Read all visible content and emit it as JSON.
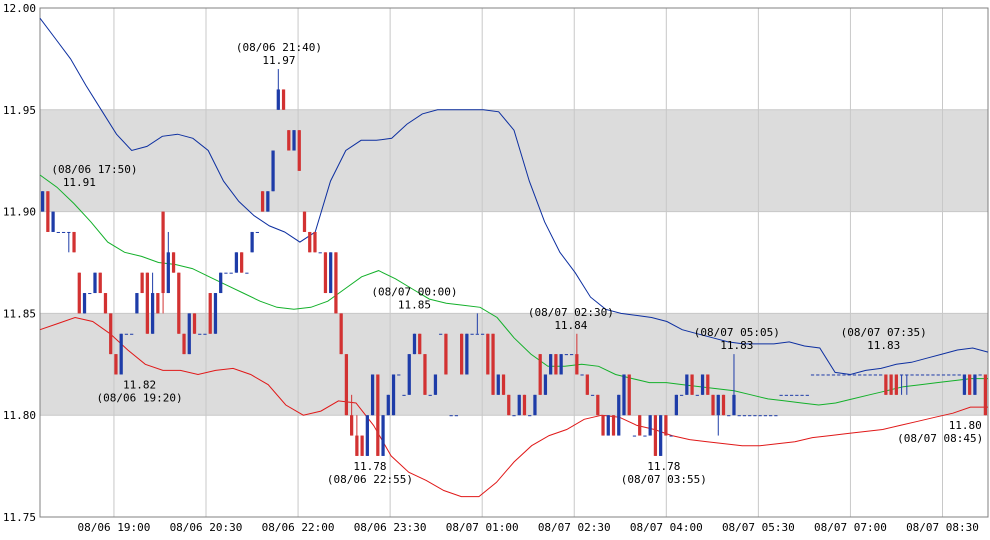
{
  "chart_data": {
    "type": "candlestick",
    "title": "",
    "xlabel": "",
    "ylabel": "",
    "ylim": [
      11.75,
      12.0
    ],
    "yticks": [
      "11.75",
      "11.80",
      "11.85",
      "11.90",
      "11.95",
      "12.00"
    ],
    "xticks": [
      "08/06 19:00",
      "08/06 20:30",
      "08/06 22:00",
      "08/06 23:30",
      "08/07 01:00",
      "08/07 02:30",
      "08/07 04:00",
      "08/07 05:30",
      "08/07 07:00",
      "08/07 08:30"
    ],
    "bands": [
      [
        11.8,
        11.85
      ],
      [
        11.9,
        11.95
      ]
    ],
    "grid": true,
    "colors": {
      "up": "#1e3ca8",
      "down": "#d23232",
      "upper_band": "#0d2fa0",
      "middle_band": "#13b02a",
      "lower_band": "#e01818",
      "band_fill": "#dcdcdc",
      "grid": "#c8c8c8"
    },
    "candles": [
      [
        11.9,
        11.91,
        11.9,
        11.91
      ],
      [
        11.91,
        11.91,
        11.89,
        11.89
      ],
      [
        11.89,
        11.9,
        11.89,
        11.9
      ],
      [
        11.89,
        11.89,
        11.89,
        11.89
      ],
      [
        11.89,
        11.89,
        11.89,
        11.89
      ],
      [
        11.89,
        11.89,
        11.88,
        11.89
      ],
      [
        11.89,
        11.89,
        11.88,
        11.88
      ],
      [
        11.87,
        11.87,
        11.85,
        11.85
      ],
      [
        11.85,
        11.86,
        11.85,
        11.86
      ],
      [
        11.86,
        11.86,
        11.86,
        11.86
      ],
      [
        11.86,
        11.87,
        11.86,
        11.87
      ],
      [
        11.87,
        11.87,
        11.86,
        11.86
      ],
      [
        11.86,
        11.86,
        11.85,
        11.85
      ],
      [
        11.85,
        11.85,
        11.83,
        11.83
      ],
      [
        11.83,
        11.83,
        11.82,
        11.82
      ],
      [
        11.82,
        11.84,
        11.82,
        11.84
      ],
      [
        11.84,
        11.84,
        11.84,
        11.84
      ],
      [
        11.84,
        11.84,
        11.84,
        11.84
      ],
      [
        11.85,
        11.86,
        11.85,
        11.86
      ],
      [
        11.87,
        11.87,
        11.86,
        11.86
      ],
      [
        11.87,
        11.87,
        11.84,
        11.84
      ],
      [
        11.84,
        11.87,
        11.84,
        11.86
      ],
      [
        11.86,
        11.86,
        11.85,
        11.85
      ],
      [
        11.9,
        11.9,
        11.85,
        11.86
      ],
      [
        11.86,
        11.89,
        11.86,
        11.88
      ],
      [
        11.88,
        11.88,
        11.87,
        11.87
      ],
      [
        11.87,
        11.87,
        11.84,
        11.84
      ],
      [
        11.84,
        11.84,
        11.83,
        11.83
      ],
      [
        11.83,
        11.85,
        11.83,
        11.85
      ],
      [
        11.85,
        11.85,
        11.84,
        11.84
      ],
      [
        11.84,
        11.84,
        11.84,
        11.84
      ],
      [
        11.84,
        11.84,
        11.84,
        11.84
      ],
      [
        11.86,
        11.86,
        11.84,
        11.84
      ],
      [
        11.84,
        11.86,
        11.84,
        11.86
      ],
      [
        11.86,
        11.87,
        11.86,
        11.87
      ],
      [
        11.87,
        11.87,
        11.87,
        11.87
      ],
      [
        11.87,
        11.87,
        11.87,
        11.87
      ],
      [
        11.87,
        11.88,
        11.87,
        11.88
      ],
      [
        11.88,
        11.88,
        11.87,
        11.87
      ],
      [
        11.87,
        11.87,
        11.87,
        11.87
      ],
      [
        11.88,
        11.89,
        11.88,
        11.89
      ],
      [
        11.89,
        11.89,
        11.89,
        11.89
      ],
      [
        11.91,
        11.91,
        11.9,
        11.9
      ],
      [
        11.9,
        11.91,
        11.9,
        11.91
      ],
      [
        11.91,
        11.93,
        11.91,
        11.93
      ],
      [
        11.95,
        11.97,
        11.95,
        11.96
      ],
      [
        11.96,
        11.96,
        11.95,
        11.95
      ],
      [
        11.94,
        11.94,
        11.93,
        11.93
      ],
      [
        11.93,
        11.94,
        11.93,
        11.94
      ],
      [
        11.94,
        11.94,
        11.92,
        11.92
      ],
      [
        11.9,
        11.9,
        11.89,
        11.89
      ],
      [
        11.89,
        11.89,
        11.88,
        11.88
      ],
      [
        11.89,
        11.89,
        11.88,
        11.88
      ],
      [
        11.88,
        11.88,
        11.88,
        11.88
      ],
      [
        11.88,
        11.88,
        11.86,
        11.86
      ],
      [
        11.86,
        11.88,
        11.86,
        11.88
      ],
      [
        11.88,
        11.88,
        11.85,
        11.85
      ],
      [
        11.85,
        11.85,
        11.83,
        11.83
      ],
      [
        11.83,
        11.83,
        11.8,
        11.8
      ],
      [
        11.8,
        11.81,
        11.79,
        11.79
      ],
      [
        11.79,
        11.8,
        11.78,
        11.78
      ],
      [
        11.79,
        11.79,
        11.78,
        11.78
      ],
      [
        11.78,
        11.8,
        11.78,
        11.8
      ],
      [
        11.8,
        11.82,
        11.8,
        11.82
      ],
      [
        11.82,
        11.82,
        11.78,
        11.78
      ],
      [
        11.78,
        11.8,
        11.78,
        11.8
      ],
      [
        11.8,
        11.81,
        11.8,
        11.81
      ],
      [
        11.8,
        11.82,
        11.8,
        11.82
      ],
      [
        11.82,
        11.82,
        11.82,
        11.82
      ],
      [
        11.81,
        11.81,
        11.81,
        11.81
      ],
      [
        11.81,
        11.83,
        11.81,
        11.83
      ],
      [
        11.83,
        11.84,
        11.83,
        11.84
      ],
      [
        11.84,
        11.84,
        11.83,
        11.83
      ],
      [
        11.83,
        11.83,
        11.81,
        11.81
      ],
      [
        11.81,
        11.81,
        11.81,
        11.81
      ],
      [
        11.81,
        11.82,
        11.81,
        11.82
      ],
      [
        11.84,
        11.84,
        11.84,
        11.84
      ],
      [
        11.84,
        11.84,
        11.82,
        11.82
      ],
      [
        11.8,
        11.8,
        11.8,
        11.8
      ],
      [
        11.8,
        11.8,
        11.8,
        11.8
      ],
      [
        11.84,
        11.84,
        11.82,
        11.82
      ],
      [
        11.82,
        11.84,
        11.82,
        11.84
      ],
      [
        11.84,
        11.84,
        11.84,
        11.84
      ],
      [
        11.84,
        11.85,
        11.84,
        11.84
      ],
      [
        11.84,
        11.84,
        11.84,
        11.84
      ],
      [
        11.84,
        11.84,
        11.82,
        11.82
      ],
      [
        11.84,
        11.84,
        11.81,
        11.81
      ],
      [
        11.81,
        11.82,
        11.81,
        11.82
      ],
      [
        11.82,
        11.82,
        11.81,
        11.81
      ],
      [
        11.81,
        11.81,
        11.8,
        11.8
      ],
      [
        11.8,
        11.8,
        11.8,
        11.8
      ],
      [
        11.8,
        11.81,
        11.8,
        11.81
      ],
      [
        11.81,
        11.81,
        11.8,
        11.8
      ],
      [
        11.8,
        11.8,
        11.8,
        11.8
      ],
      [
        11.8,
        11.81,
        11.8,
        11.81
      ],
      [
        11.83,
        11.83,
        11.81,
        11.81
      ],
      [
        11.81,
        11.82,
        11.81,
        11.82
      ],
      [
        11.82,
        11.83,
        11.82,
        11.83
      ],
      [
        11.83,
        11.83,
        11.82,
        11.82
      ],
      [
        11.82,
        11.83,
        11.82,
        11.83
      ],
      [
        11.83,
        11.83,
        11.83,
        11.83
      ],
      [
        11.83,
        11.83,
        11.83,
        11.83
      ],
      [
        11.83,
        11.84,
        11.82,
        11.82
      ],
      [
        11.82,
        11.82,
        11.82,
        11.82
      ],
      [
        11.82,
        11.82,
        11.81,
        11.81
      ],
      [
        11.81,
        11.81,
        11.81,
        11.81
      ],
      [
        11.81,
        11.81,
        11.8,
        11.8
      ],
      [
        11.8,
        11.8,
        11.79,
        11.79
      ],
      [
        11.79,
        11.8,
        11.79,
        11.8
      ],
      [
        11.8,
        11.8,
        11.79,
        11.79
      ],
      [
        11.79,
        11.81,
        11.79,
        11.81
      ],
      [
        11.8,
        11.82,
        11.8,
        11.82
      ],
      [
        11.82,
        11.82,
        11.8,
        11.8
      ],
      [
        11.79,
        11.79,
        11.79,
        11.79
      ],
      [
        11.8,
        11.8,
        11.79,
        11.79
      ],
      [
        11.79,
        11.79,
        11.79,
        11.79
      ],
      [
        11.79,
        11.8,
        11.79,
        11.8
      ],
      [
        11.8,
        11.8,
        11.78,
        11.78
      ],
      [
        11.78,
        11.8,
        11.78,
        11.8
      ],
      [
        11.8,
        11.8,
        11.79,
        11.79
      ],
      [
        11.79,
        11.79,
        11.79,
        11.79
      ],
      [
        11.8,
        11.81,
        11.8,
        11.81
      ],
      [
        11.81,
        11.81,
        11.81,
        11.81
      ],
      [
        11.81,
        11.82,
        11.81,
        11.82
      ],
      [
        11.82,
        11.82,
        11.81,
        11.81
      ],
      [
        11.81,
        11.81,
        11.81,
        11.81
      ],
      [
        11.81,
        11.82,
        11.81,
        11.82
      ],
      [
        11.82,
        11.82,
        11.81,
        11.81
      ],
      [
        11.81,
        11.81,
        11.8,
        11.8
      ],
      [
        11.8,
        11.81,
        11.79,
        11.81
      ],
      [
        11.81,
        11.81,
        11.8,
        11.8
      ],
      [
        11.8,
        11.8,
        11.8,
        11.8
      ],
      [
        11.8,
        11.83,
        11.8,
        11.81
      ],
      [
        11.8,
        11.8,
        11.8,
        11.8
      ],
      [
        11.8,
        11.8,
        11.8,
        11.8
      ],
      [
        11.8,
        11.8,
        11.8,
        11.8
      ],
      [
        11.8,
        11.8,
        11.8,
        11.8
      ],
      [
        11.8,
        11.8,
        11.8,
        11.8
      ],
      [
        11.8,
        11.8,
        11.8,
        11.8
      ],
      [
        11.8,
        11.8,
        11.8,
        11.8
      ],
      [
        11.8,
        11.8,
        11.8,
        11.8
      ],
      [
        11.81,
        11.81,
        11.81,
        11.81
      ],
      [
        11.81,
        11.81,
        11.81,
        11.81
      ],
      [
        11.81,
        11.81,
        11.81,
        11.81
      ],
      [
        11.81,
        11.81,
        11.81,
        11.81
      ],
      [
        11.81,
        11.81,
        11.81,
        11.81
      ],
      [
        11.81,
        11.81,
        11.81,
        11.81
      ],
      [
        11.82,
        11.82,
        11.82,
        11.82
      ],
      [
        11.82,
        11.82,
        11.82,
        11.82
      ],
      [
        11.82,
        11.82,
        11.82,
        11.82
      ],
      [
        11.82,
        11.82,
        11.82,
        11.82
      ],
      [
        11.82,
        11.82,
        11.82,
        11.82
      ],
      [
        11.82,
        11.82,
        11.82,
        11.82
      ],
      [
        11.82,
        11.82,
        11.82,
        11.82
      ],
      [
        11.82,
        11.82,
        11.82,
        11.82
      ],
      [
        11.82,
        11.82,
        11.82,
        11.82
      ],
      [
        11.82,
        11.82,
        11.82,
        11.82
      ],
      [
        11.82,
        11.82,
        11.82,
        11.82
      ],
      [
        11.82,
        11.82,
        11.82,
        11.82
      ],
      [
        11.82,
        11.82,
        11.82,
        11.82
      ],
      [
        11.82,
        11.82,
        11.82,
        11.82
      ],
      [
        11.82,
        11.82,
        11.81,
        11.81
      ],
      [
        11.82,
        11.82,
        11.81,
        11.81
      ],
      [
        11.82,
        11.82,
        11.81,
        11.81
      ],
      [
        11.82,
        11.82,
        11.81,
        11.82
      ],
      [
        11.82,
        11.82,
        11.81,
        11.82
      ],
      [
        11.82,
        11.82,
        11.82,
        11.82
      ],
      [
        11.82,
        11.82,
        11.82,
        11.82
      ],
      [
        11.82,
        11.82,
        11.82,
        11.82
      ],
      [
        11.82,
        11.82,
        11.82,
        11.82
      ],
      [
        11.82,
        11.82,
        11.82,
        11.82
      ],
      [
        11.82,
        11.82,
        11.82,
        11.82
      ],
      [
        11.82,
        11.82,
        11.82,
        11.82
      ],
      [
        11.82,
        11.82,
        11.82,
        11.82
      ],
      [
        11.82,
        11.82,
        11.82,
        11.82
      ],
      [
        11.82,
        11.82,
        11.82,
        11.82
      ],
      [
        11.81,
        11.82,
        11.81,
        11.82
      ],
      [
        11.82,
        11.82,
        11.81,
        11.81
      ],
      [
        11.81,
        11.82,
        11.81,
        11.82
      ],
      [
        11.82,
        11.82,
        11.82,
        11.82
      ],
      [
        11.82,
        11.82,
        11.8,
        11.8
      ]
    ],
    "upper_band": [
      11.995,
      11.985,
      11.975,
      11.962,
      11.95,
      11.938,
      11.93,
      11.932,
      11.937,
      11.938,
      11.936,
      11.93,
      11.915,
      11.905,
      11.898,
      11.893,
      11.89,
      11.885,
      11.89,
      11.915,
      11.93,
      11.935,
      11.935,
      11.936,
      11.943,
      11.948,
      11.95,
      11.95,
      11.95,
      11.95,
      11.949,
      11.94,
      11.915,
      11.895,
      11.88,
      11.87,
      11.858,
      11.852,
      11.85,
      11.849,
      11.848,
      11.846,
      11.842,
      11.84,
      11.838,
      11.836,
      11.835,
      11.835,
      11.835,
      11.836,
      11.834,
      11.833,
      11.821,
      11.82,
      11.822,
      11.823,
      11.825,
      11.826,
      11.828,
      11.83,
      11.832,
      11.833,
      11.831
    ],
    "middle_band": [
      11.918,
      11.912,
      11.904,
      11.895,
      11.885,
      11.88,
      11.878,
      11.875,
      11.874,
      11.872,
      11.868,
      11.864,
      11.86,
      11.856,
      11.853,
      11.852,
      11.853,
      11.856,
      11.862,
      11.868,
      11.871,
      11.867,
      11.862,
      11.857,
      11.855,
      11.854,
      11.853,
      11.848,
      11.838,
      11.83,
      11.824,
      11.824,
      11.825,
      11.824,
      11.82,
      11.818,
      11.816,
      11.816,
      11.815,
      11.814,
      11.813,
      11.812,
      11.81,
      11.808,
      11.807,
      11.806,
      11.805,
      11.806,
      11.808,
      11.81,
      11.812,
      11.814,
      11.815,
      11.816,
      11.817,
      11.818,
      11.818
    ],
    "lower_band": [
      11.842,
      11.845,
      11.848,
      11.846,
      11.84,
      11.832,
      11.825,
      11.822,
      11.822,
      11.82,
      11.822,
      11.823,
      11.82,
      11.815,
      11.805,
      11.8,
      11.802,
      11.807,
      11.806,
      11.795,
      11.78,
      11.772,
      11.768,
      11.763,
      11.76,
      11.76,
      11.767,
      11.777,
      11.785,
      11.79,
      11.793,
      11.798,
      11.8,
      11.799,
      11.795,
      11.793,
      11.79,
      11.788,
      11.787,
      11.786,
      11.785,
      11.785,
      11.786,
      11.787,
      11.789,
      11.79,
      11.791,
      11.792,
      11.793,
      11.795,
      11.797,
      11.799,
      11.801,
      11.804,
      11.804
    ],
    "annotations": [
      {
        "time": "(08/06 17:50)",
        "price": "11.91"
      },
      {
        "time": "(08/06 19:20)",
        "price": "11.82"
      },
      {
        "time": "(08/06 21:40)",
        "price": "11.97"
      },
      {
        "time": "(08/06 22:55)",
        "price": "11.78"
      },
      {
        "time": "(08/07 00:00)",
        "price": "11.85"
      },
      {
        "time": "(08/07 02:30)",
        "price": "11.84"
      },
      {
        "time": "(08/07 03:55)",
        "price": "11.78"
      },
      {
        "time": "(08/07 05:05)",
        "price": "11.83"
      },
      {
        "time": "(08/07 07:35)",
        "price": "11.83"
      },
      {
        "time": "(08/07 08:45)",
        "price": "11.80"
      }
    ]
  }
}
